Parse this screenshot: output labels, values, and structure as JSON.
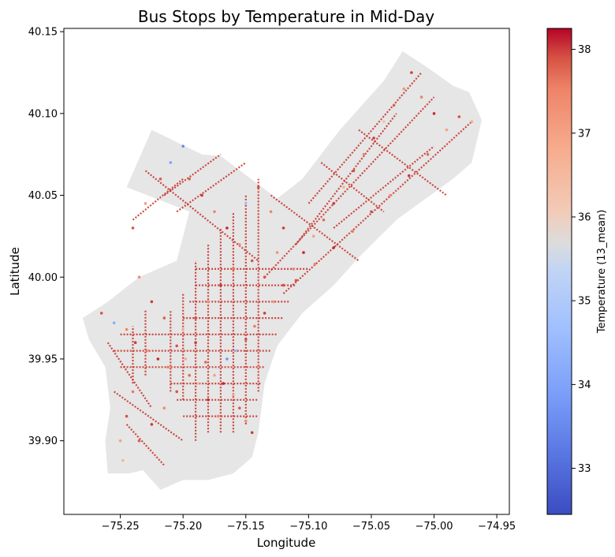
{
  "chart_data": {
    "type": "scatter",
    "title": "Bus Stops by Temperature in Mid-Day",
    "xlabel": "Longitude",
    "ylabel": "Latitude",
    "xlim": [
      -75.295,
      -74.94
    ],
    "ylim": [
      39.855,
      40.152
    ],
    "x_ticks": [
      -75.25,
      -75.2,
      -75.15,
      -75.1,
      -75.05,
      -75.0,
      -74.95
    ],
    "x_tick_labels": [
      "−75.25",
      "−75.20",
      "−75.15",
      "−75.10",
      "−75.05",
      "−75.00",
      "−74.95"
    ],
    "y_ticks": [
      39.9,
      39.95,
      40.0,
      40.05,
      40.1,
      40.15
    ],
    "y_tick_labels": [
      "39.90",
      "39.95",
      "40.00",
      "40.05",
      "40.10",
      "40.15"
    ],
    "grid": false,
    "colormap": "coolwarm",
    "colorbar": {
      "label": "Temperature (13_mean)",
      "vmin": 32.45,
      "vmax": 38.25,
      "ticks": [
        33,
        34,
        35,
        36,
        37,
        38
      ],
      "tick_labels": [
        "33",
        "34",
        "35",
        "36",
        "37",
        "38"
      ]
    },
    "boundary_polygon": [
      [
        -75.28,
        39.975
      ],
      [
        -75.26,
        39.985
      ],
      [
        -75.235,
        40.0
      ],
      [
        -75.205,
        40.01
      ],
      [
        -75.195,
        40.04
      ],
      [
        -75.245,
        40.055
      ],
      [
        -75.225,
        40.09
      ],
      [
        -75.185,
        40.075
      ],
      [
        -75.17,
        40.074
      ],
      [
        -75.125,
        40.048
      ],
      [
        -75.105,
        40.06
      ],
      [
        -75.075,
        40.09
      ],
      [
        -75.04,
        40.12
      ],
      [
        -75.025,
        40.138
      ],
      [
        -75.005,
        40.128
      ],
      [
        -74.985,
        40.117
      ],
      [
        -74.972,
        40.113
      ],
      [
        -74.962,
        40.096
      ],
      [
        -74.97,
        40.07
      ],
      [
        -74.985,
        40.06
      ],
      [
        -75.03,
        40.035
      ],
      [
        -75.06,
        40.012
      ],
      [
        -75.08,
        39.995
      ],
      [
        -75.105,
        39.978
      ],
      [
        -75.125,
        39.958
      ],
      [
        -75.135,
        39.935
      ],
      [
        -75.14,
        39.905
      ],
      [
        -75.145,
        39.89
      ],
      [
        -75.16,
        39.88
      ],
      [
        -75.18,
        39.876
      ],
      [
        -75.2,
        39.876
      ],
      [
        -75.218,
        39.87
      ],
      [
        -75.232,
        39.882
      ],
      [
        -75.243,
        39.88
      ],
      [
        -75.26,
        39.88
      ],
      [
        -75.262,
        39.9
      ],
      [
        -75.258,
        39.92
      ],
      [
        -75.262,
        39.945
      ],
      [
        -75.275,
        39.962
      ]
    ],
    "points": [
      [
        -75.265,
        39.978,
        37.9
      ],
      [
        -75.255,
        39.972,
        34.2
      ],
      [
        -75.245,
        39.968,
        37.5
      ],
      [
        -75.238,
        39.96,
        38.0
      ],
      [
        -75.228,
        39.955,
        37.2
      ],
      [
        -75.22,
        39.95,
        38.1
      ],
      [
        -75.212,
        39.945,
        37.6
      ],
      [
        -75.205,
        39.958,
        37.9
      ],
      [
        -75.198,
        39.95,
        36.8
      ],
      [
        -75.19,
        39.96,
        38.0
      ],
      [
        -75.182,
        39.948,
        37.7
      ],
      [
        -75.175,
        39.94,
        37.0
      ],
      [
        -75.168,
        39.935,
        38.1
      ],
      [
        -75.16,
        39.928,
        36.9
      ],
      [
        -75.155,
        39.92,
        37.8
      ],
      [
        -75.15,
        39.912,
        37.3
      ],
      [
        -75.145,
        39.905,
        38.0
      ],
      [
        -75.172,
        39.915,
        37.4
      ],
      [
        -75.18,
        39.925,
        38.1
      ],
      [
        -75.188,
        39.935,
        36.5
      ],
      [
        -75.165,
        39.95,
        33.7
      ],
      [
        -75.158,
        39.955,
        34.5
      ],
      [
        -75.15,
        39.962,
        37.9
      ],
      [
        -75.143,
        39.97,
        37.6
      ],
      [
        -75.135,
        39.978,
        38.0
      ],
      [
        -75.128,
        39.985,
        37.2
      ],
      [
        -75.12,
        39.995,
        37.9
      ],
      [
        -75.112,
        40.005,
        37.5
      ],
      [
        -75.104,
        40.015,
        38.1
      ],
      [
        -75.096,
        40.025,
        37.0
      ],
      [
        -75.088,
        40.035,
        37.7
      ],
      [
        -75.08,
        40.045,
        38.0
      ],
      [
        -75.072,
        40.055,
        36.7
      ],
      [
        -75.064,
        40.065,
        37.9
      ],
      [
        -75.056,
        40.075,
        37.4
      ],
      [
        -75.048,
        40.085,
        38.0
      ],
      [
        -75.04,
        40.095,
        36.3
      ],
      [
        -75.032,
        40.105,
        37.8
      ],
      [
        -75.024,
        40.115,
        37.2
      ],
      [
        -75.018,
        40.125,
        38.0
      ],
      [
        -75.01,
        40.11,
        37.5
      ],
      [
        -75.0,
        40.1,
        38.1
      ],
      [
        -74.99,
        40.09,
        37.0
      ],
      [
        -74.98,
        40.098,
        37.9
      ],
      [
        -74.97,
        40.095,
        36.8
      ],
      [
        -75.005,
        40.075,
        37.7
      ],
      [
        -75.02,
        40.062,
        38.0
      ],
      [
        -75.035,
        40.05,
        37.3
      ],
      [
        -75.05,
        40.04,
        37.9
      ],
      [
        -75.065,
        40.028,
        37.6
      ],
      [
        -75.08,
        40.018,
        38.1
      ],
      [
        -75.095,
        40.008,
        37.4
      ],
      [
        -75.11,
        39.998,
        37.9
      ],
      [
        -75.2,
        40.08,
        33.5
      ],
      [
        -75.21,
        40.07,
        34.0
      ],
      [
        -75.195,
        40.06,
        37.8
      ],
      [
        -75.185,
        40.05,
        38.0
      ],
      [
        -75.175,
        40.04,
        37.5
      ],
      [
        -75.165,
        40.03,
        38.1
      ],
      [
        -75.155,
        40.02,
        37.2
      ],
      [
        -75.145,
        40.01,
        37.9
      ],
      [
        -75.16,
        40.005,
        37.6
      ],
      [
        -75.17,
        39.995,
        38.0
      ],
      [
        -75.18,
        39.985,
        37.3
      ],
      [
        -75.19,
        39.975,
        37.9
      ],
      [
        -75.2,
        39.968,
        36.9
      ],
      [
        -75.215,
        39.975,
        37.8
      ],
      [
        -75.225,
        39.985,
        38.0
      ],
      [
        -75.235,
        40.0,
        37.4
      ],
      [
        -75.24,
        40.03,
        37.9
      ],
      [
        -75.23,
        40.045,
        37.1
      ],
      [
        -75.218,
        40.06,
        37.8
      ],
      [
        -75.15,
        40.045,
        34.8
      ],
      [
        -75.14,
        40.055,
        37.9
      ],
      [
        -75.13,
        40.04,
        37.5
      ],
      [
        -75.12,
        40.03,
        38.0
      ],
      [
        -75.125,
        40.015,
        37.2
      ],
      [
        -75.135,
        40.0,
        37.9
      ],
      [
        -75.24,
        39.93,
        37.6
      ],
      [
        -75.245,
        39.915,
        37.9
      ],
      [
        -75.25,
        39.9,
        37.0
      ],
      [
        -75.248,
        39.888,
        36.6
      ],
      [
        -75.235,
        39.9,
        37.8
      ],
      [
        -75.225,
        39.91,
        38.0
      ],
      [
        -75.215,
        39.92,
        37.4
      ],
      [
        -75.205,
        39.93,
        37.9
      ],
      [
        -75.195,
        39.94,
        37.7
      ]
    ]
  }
}
